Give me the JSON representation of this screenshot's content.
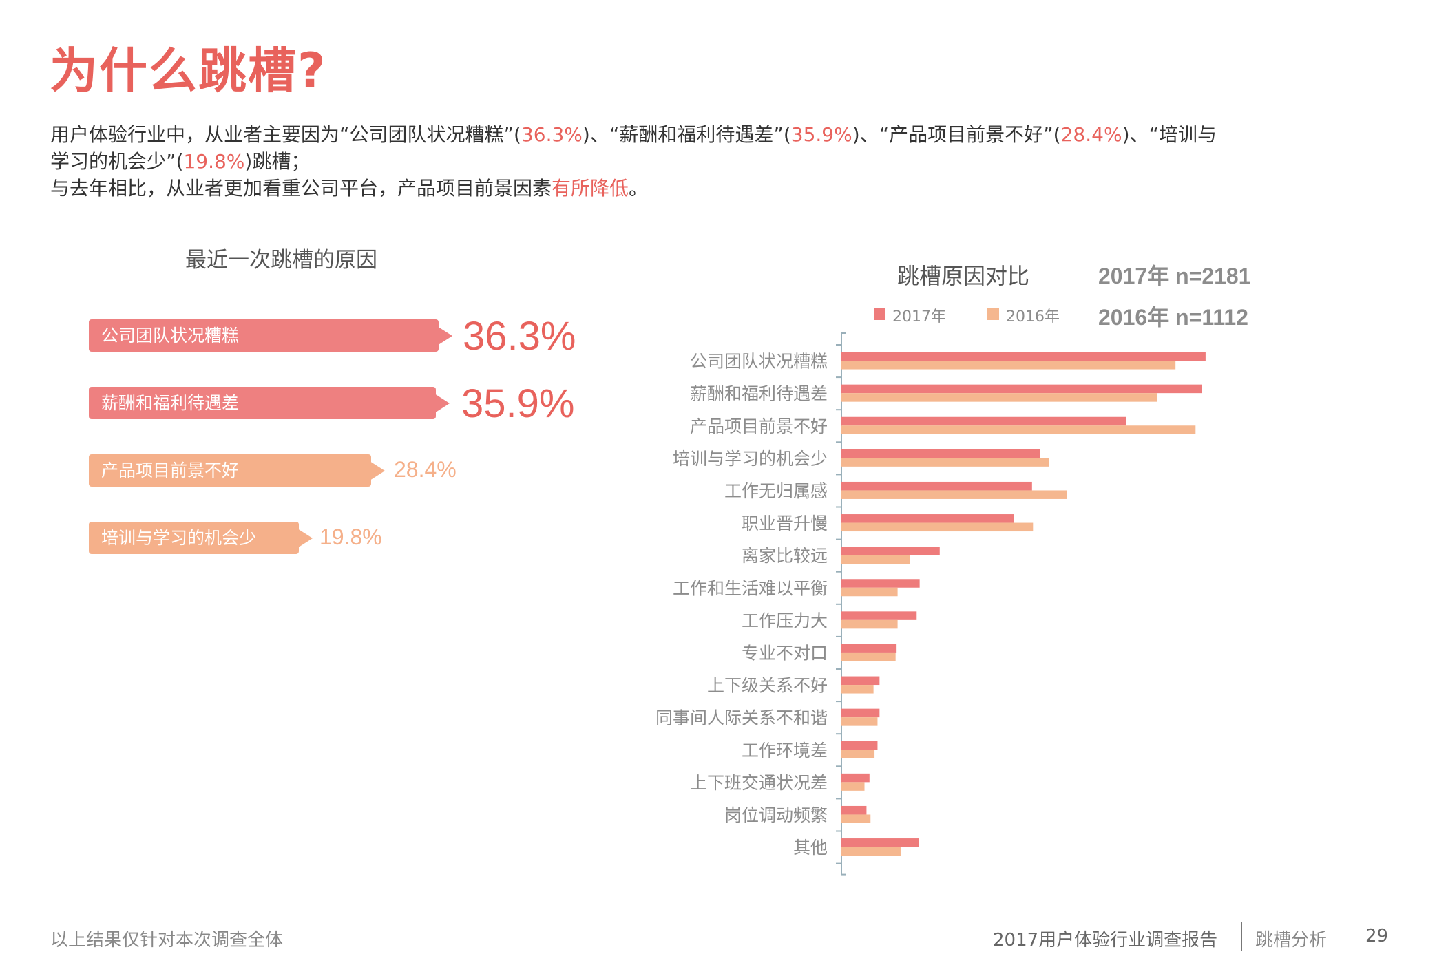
{
  "page": {
    "title": "为什么跳槽?",
    "body": {
      "line1_parts": [
        "用户体验行业中，从业者主要因为“公司团队状况糟糕”(",
        "36.3%",
        ")、“薪酬和福利待遇差”(",
        "35.9%",
        ")、“产品项目前景不好”(",
        "28.4%",
        ")、“培训与"
      ],
      "line2_parts": [
        "学习的机会少”(",
        "19.8%",
        ")跳槽；"
      ],
      "line3_parts": [
        "与去年相比，从业者更加看重公司平台，产品项目前景因素",
        "有所降低",
        "。"
      ]
    }
  },
  "left_panel": {
    "title": "最近一次跳槽的原因",
    "items": [
      {
        "label": "公司团队状况糟糕",
        "value": "36.3%",
        "color": "#EE8080",
        "value_color": "#E8625C"
      },
      {
        "label": "薪酬和福利待遇差",
        "value": "35.9%",
        "color": "#EE8080",
        "value_color": "#E8625C"
      },
      {
        "label": "产品项目前景不好",
        "value": "28.4%",
        "color": "#F5B08A",
        "value_color": "#F5B08A"
      },
      {
        "label": "培训与学习的机会少",
        "value": "19.8%",
        "color": "#F5B08A",
        "value_color": "#F5B08A"
      }
    ]
  },
  "chart_data": {
    "type": "bar",
    "orientation": "horizontal",
    "title": "跳槽原因对比",
    "sample_sizes": [
      "2017年 n=2181",
      "2016年 n=1112"
    ],
    "xlabel": "",
    "ylabel": "",
    "xlim": [
      0,
      40
    ],
    "grid": false,
    "legend_position": "top",
    "categories": [
      "公司团队状况糟糕",
      "薪酬和福利待遇差",
      "产品项目前景不好",
      "培训与学习的机会少",
      "工作无归属感",
      "职业晋升慢",
      "离家比较远",
      "工作和生活难以平衡",
      "工作压力大",
      "专业不对口",
      "上下级关系不好",
      "同事间人际关系不和谐",
      "工作环境差",
      "上下班交通状况差",
      "岗位调动频繁",
      "其他"
    ],
    "series": [
      {
        "name": "2017年",
        "color": "#EE7B7B",
        "values": [
          36.3,
          35.9,
          28.4,
          19.8,
          19.0,
          17.2,
          9.8,
          7.8,
          7.5,
          5.5,
          3.8,
          3.8,
          3.6,
          2.8,
          2.5,
          7.7
        ]
      },
      {
        "name": "2016年",
        "color": "#F5B78F",
        "values": [
          33.3,
          31.5,
          35.3,
          20.7,
          22.5,
          19.1,
          6.8,
          5.6,
          5.6,
          5.4,
          3.2,
          3.6,
          3.3,
          2.3,
          2.9,
          5.9
        ]
      }
    ]
  },
  "footer": {
    "note": "以上结果仅针对本次调查全体",
    "report": "2017用户体验行业调查报告",
    "section": "跳槽分析",
    "page_number": "29"
  },
  "colors": {
    "accent": "#E8625C",
    "axis": "#9AB0BA",
    "label": "#8c8c8c"
  }
}
